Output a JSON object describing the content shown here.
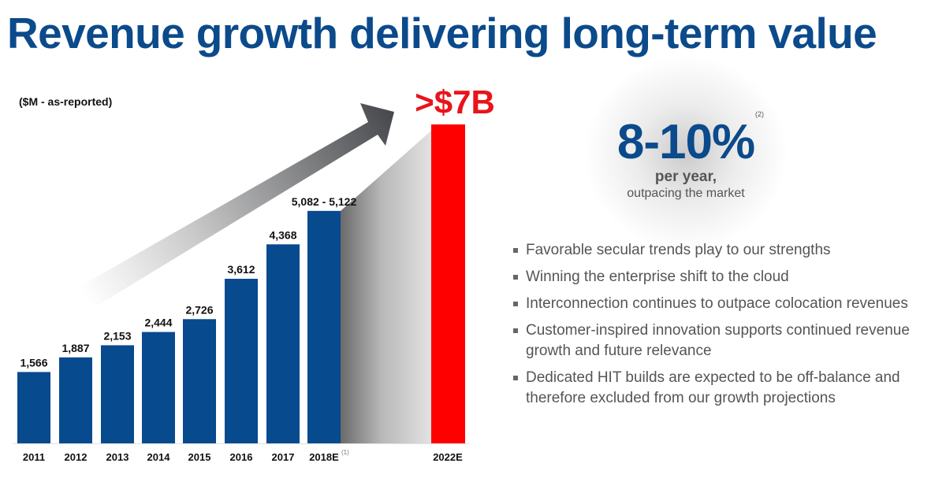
{
  "slide": {
    "title": "Revenue growth delivering long-term value",
    "units_label": "($M - as-reported)"
  },
  "callout": {
    "headline": ">$7B",
    "growth_rate": "8-10%",
    "growth_footnote": "(2)",
    "growth_period": "per year,",
    "growth_context": "outpacing the market"
  },
  "bullets": [
    "Favorable secular trends play to our strengths",
    "Winning the enterprise shift to the cloud",
    "Interconnection continues to outpace colocation revenues",
    "Customer-inspired innovation supports continued revenue growth and future relevance",
    "Dedicated HIT builds are expected to be off-balance and therefore excluded from our growth projections"
  ],
  "colors": {
    "actual_bar": "#074a8e",
    "projected_bar": "#ff0000",
    "title": "#0b4a8b",
    "callout_red": "#e8141b"
  },
  "chart_data": {
    "type": "bar",
    "title": "",
    "xlabel": "",
    "ylabel": "$M",
    "ylim": [
      0,
      7000
    ],
    "grid": false,
    "legend": "none",
    "categories": [
      "2011",
      "2012",
      "2013",
      "2014",
      "2015",
      "2016",
      "2017",
      "2018E",
      "2022E"
    ],
    "category_footnotes": {
      "2018E": "(1)"
    },
    "values": [
      1566,
      1887,
      2153,
      2444,
      2726,
      3612,
      4368,
      5102,
      7000
    ],
    "data_labels": [
      "1,566",
      "1,887",
      "2,153",
      "2,444",
      "2,726",
      "3,612",
      "4,368",
      "5,082 - 5,122",
      ""
    ],
    "ranges": {
      "2018E": [
        5082,
        5122
      ]
    },
    "series_kind": [
      "actual",
      "actual",
      "actual",
      "actual",
      "actual",
      "actual",
      "actual",
      "actual",
      "projected"
    ],
    "annotations": [
      ">$7B",
      "growth arrow"
    ]
  }
}
